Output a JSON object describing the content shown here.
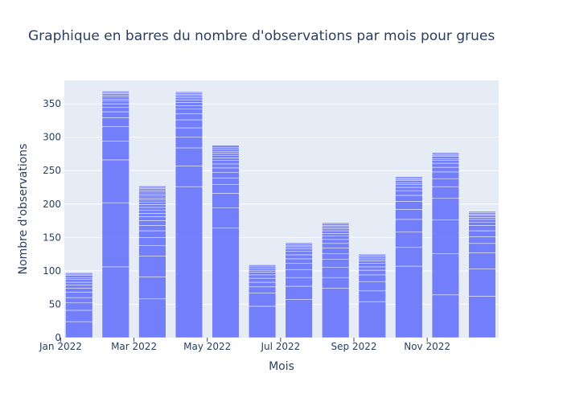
{
  "chart_data": {
    "type": "bar",
    "title": "Graphique en barres du nombre d'observations par mois pour grues",
    "xlabel": "Mois",
    "ylabel": "Nombre d'observations",
    "ylim": [
      0,
      385
    ],
    "yticks": [
      0,
      50,
      100,
      150,
      200,
      250,
      300,
      350
    ],
    "xtick_labels": [
      "Jan 2022",
      "Mar 2022",
      "May 2022",
      "Jul 2022",
      "Sep 2022",
      "Nov 2022"
    ],
    "xtick_months": [
      0,
      2,
      4,
      6,
      8,
      10
    ],
    "categories": [
      "2022-01",
      "2022-02",
      "2022-03",
      "2022-04",
      "2022-05",
      "2022-06",
      "2022-07",
      "2022-08",
      "2022-09",
      "2022-10",
      "2022-11",
      "2022-12"
    ],
    "values": [
      97,
      369,
      226,
      369,
      288,
      109,
      142,
      172,
      125,
      241,
      277,
      189
    ],
    "segments": [
      [
        24,
        17,
        11,
        8,
        8,
        6,
        5,
        4,
        4,
        3,
        3,
        2,
        2
      ],
      [
        106,
        96,
        64,
        28,
        22,
        13,
        9,
        7,
        5,
        4,
        3,
        3,
        3,
        2,
        2,
        2
      ],
      [
        58,
        33,
        31,
        16,
        12,
        10,
        8,
        7,
        6,
        5,
        5,
        4,
        4,
        4,
        3,
        3,
        3,
        3,
        3,
        3,
        2,
        2,
        2
      ],
      [
        226,
        31,
        27,
        16,
        14,
        12,
        9,
        7,
        5,
        5,
        4,
        3,
        3,
        2,
        2,
        2
      ],
      [
        164,
        30,
        22,
        13,
        10,
        8,
        7,
        6,
        5,
        4,
        4,
        3,
        3,
        3,
        3,
        3
      ],
      [
        47,
        20,
        9,
        7,
        6,
        5,
        4,
        3,
        3,
        3,
        2
      ],
      [
        57,
        20,
        13,
        12,
        9,
        7,
        6,
        5,
        4,
        3,
        2,
        2,
        2
      ],
      [
        74,
        16,
        15,
        12,
        9,
        8,
        7,
        6,
        5,
        4,
        4,
        3,
        3,
        2,
        2,
        2
      ],
      [
        54,
        16,
        14,
        10,
        7,
        5,
        5,
        4,
        3,
        3,
        2,
        2
      ],
      [
        107,
        28,
        23,
        19,
        15,
        12,
        9,
        7,
        5,
        4,
        3,
        3,
        2,
        2,
        2
      ],
      [
        64,
        62,
        50,
        33,
        17,
        12,
        10,
        7,
        6,
        4,
        3,
        3,
        2,
        2,
        2
      ],
      [
        62,
        41,
        24,
        14,
        10,
        9,
        8,
        5,
        4,
        3,
        3,
        2,
        2,
        2
      ]
    ],
    "bar_color": "#636efa",
    "segment_line_color": "#ffffff",
    "plot_background": "#e5ecf6",
    "grid_color": "#ffffff",
    "text_color": "#2a3f5f",
    "grid": true,
    "legend": "none"
  }
}
